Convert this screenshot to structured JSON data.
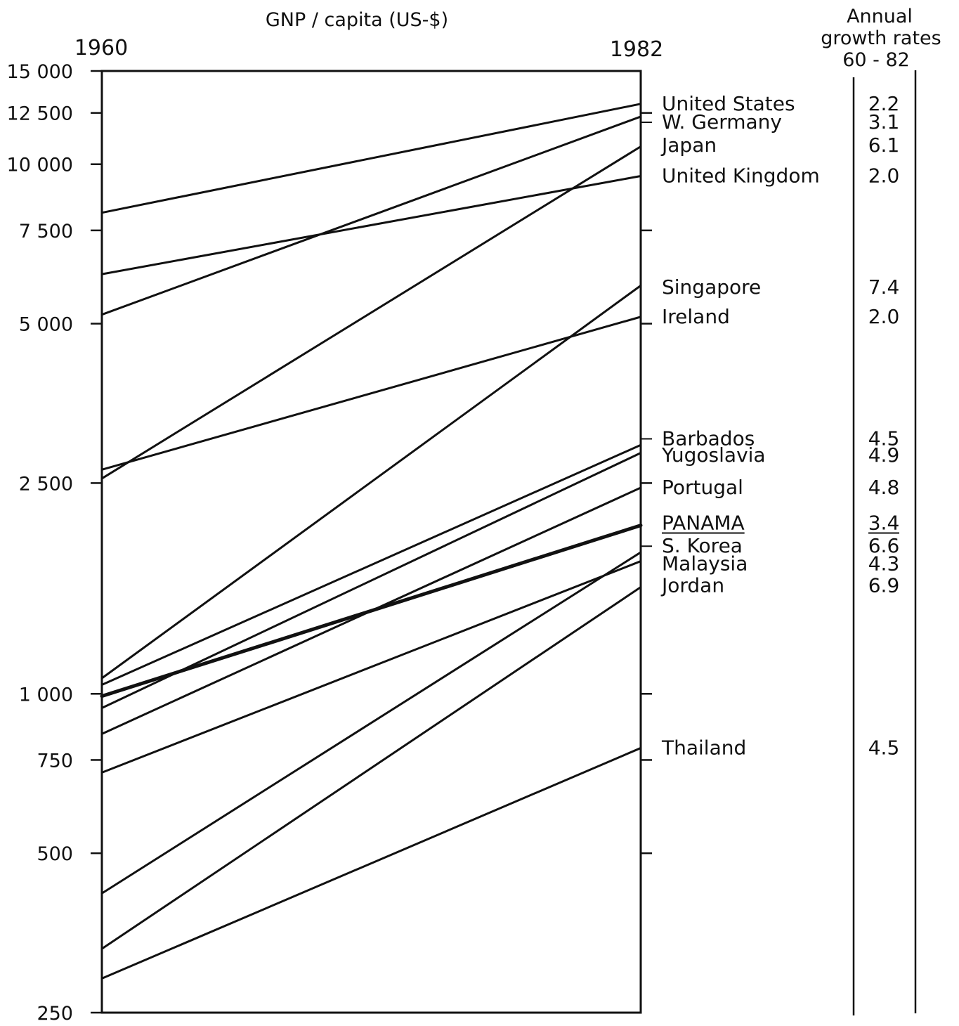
{
  "chart_data": {
    "type": "line",
    "title": "GNP / capita (US-$)",
    "scale": "log",
    "x": [
      "1960",
      "1982"
    ],
    "ylim": [
      250,
      15000
    ],
    "yticks": [
      {
        "value": 15000,
        "label": "15 000"
      },
      {
        "value": 12500,
        "label": "12 500"
      },
      {
        "value": 10000,
        "label": "10 000"
      },
      {
        "value": 7500,
        "label": "7 500"
      },
      {
        "value": 5000,
        "label": "5 000"
      },
      {
        "value": 2500,
        "label": "2 500"
      },
      {
        "value": 1000,
        "label": "1 000"
      },
      {
        "value": 750,
        "label": "750"
      },
      {
        "value": 500,
        "label": "500"
      },
      {
        "value": 250,
        "label": "250"
      }
    ],
    "right_ticks": [
      12500,
      7500,
      5000,
      2500,
      1000,
      750,
      500
    ],
    "rates_header": [
      "Annual",
      "growth rates",
      "60 - 82"
    ],
    "series": [
      {
        "name": "United States",
        "values": [
          8100,
          13000
        ],
        "rate": "2.2",
        "label_value": 13000
      },
      {
        "name": "W. Germany",
        "values": [
          5200,
          12300
        ],
        "rate": "3.1",
        "label_value": 12000
      },
      {
        "name": "Japan",
        "values": [
          2550,
          10800
        ],
        "rate": "6.1",
        "label_value": 10850
      },
      {
        "name": "United Kingdom",
        "values": [
          6200,
          9500
        ],
        "rate": "2.0",
        "label_value": 9500
      },
      {
        "name": "Singapore",
        "values": [
          1070,
          5900
        ],
        "rate": "7.4",
        "label_value": 5850
      },
      {
        "name": "Ireland",
        "values": [
          2650,
          5150
        ],
        "rate": "2.0",
        "label_value": 5150
      },
      {
        "name": "Barbados",
        "values": [
          1040,
          2950
        ],
        "rate": "4.5",
        "label_value": 3030
      },
      {
        "name": "Yugoslavia",
        "values": [
          940,
          2850
        ],
        "rate": "4.9",
        "label_value": 2820
      },
      {
        "name": "Portugal",
        "values": [
          840,
          2450
        ],
        "rate": "4.8",
        "label_value": 2450
      },
      {
        "name": "PANAMA",
        "values": [
          990,
          2080
        ],
        "rate": "3.4",
        "label_value": 2100,
        "emphasis": true
      },
      {
        "name": "S. Korea",
        "values": [
          420,
          1850
        ],
        "rate": "6.6",
        "label_value": 1900
      },
      {
        "name": "Malaysia",
        "values": [
          710,
          1780
        ],
        "rate": "4.3",
        "label_value": 1760
      },
      {
        "name": "Jordan",
        "values": [
          330,
          1590
        ],
        "rate": "6.9",
        "label_value": 1600
      },
      {
        "name": "Thailand",
        "values": [
          290,
          790
        ],
        "rate": "4.5",
        "label_value": 790
      }
    ]
  }
}
